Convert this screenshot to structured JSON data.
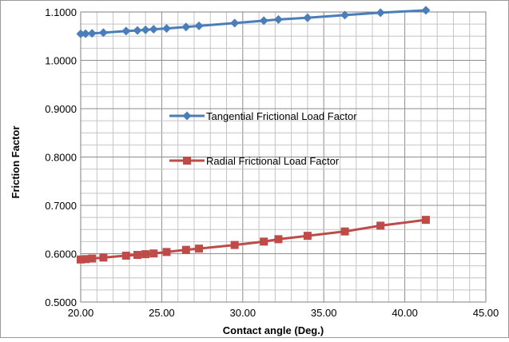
{
  "chart_data": {
    "type": "line",
    "xlabel": "Contact angle (Deg.)",
    "ylabel": "Friction Factor",
    "xlim": [
      20,
      45
    ],
    "ylim": [
      0.5,
      1.1
    ],
    "grid": true,
    "legend_placement": "inside-center",
    "x_ticks": [
      "20.00",
      "25.00",
      "30.00",
      "35.00",
      "40.00",
      "45.00"
    ],
    "y_ticks": [
      "0.5000",
      "0.6000",
      "0.7000",
      "0.8000",
      "0.9000",
      "1.0000",
      "1.1000"
    ],
    "series": [
      {
        "name": "Tangential Frictional Load Factor",
        "color": "#4a7ebb",
        "marker": "diamond",
        "x": [
          20.0,
          20.3,
          20.7,
          21.4,
          22.8,
          23.5,
          24.0,
          24.5,
          25.3,
          26.5,
          27.3,
          29.5,
          31.3,
          32.2,
          34.0,
          36.3,
          38.5,
          41.3
        ],
        "y": [
          1.0548,
          1.0552,
          1.0558,
          1.0572,
          1.0605,
          1.0618,
          1.063,
          1.0643,
          1.066,
          1.069,
          1.0712,
          1.077,
          1.082,
          1.0845,
          1.088,
          1.0935,
          1.0985,
          1.1035
        ]
      },
      {
        "name": "Radial Frictional Load Factor",
        "color": "#be4b48",
        "marker": "square",
        "x": [
          20.0,
          20.3,
          20.7,
          21.4,
          22.8,
          23.5,
          24.0,
          24.5,
          25.3,
          26.5,
          27.3,
          29.5,
          31.3,
          32.2,
          34.0,
          36.3,
          38.5,
          41.3
        ],
        "y": [
          0.588,
          0.5888,
          0.59,
          0.592,
          0.596,
          0.5975,
          0.599,
          0.6005,
          0.6035,
          0.608,
          0.6105,
          0.618,
          0.625,
          0.63,
          0.637,
          0.646,
          0.658,
          0.67
        ]
      }
    ]
  }
}
